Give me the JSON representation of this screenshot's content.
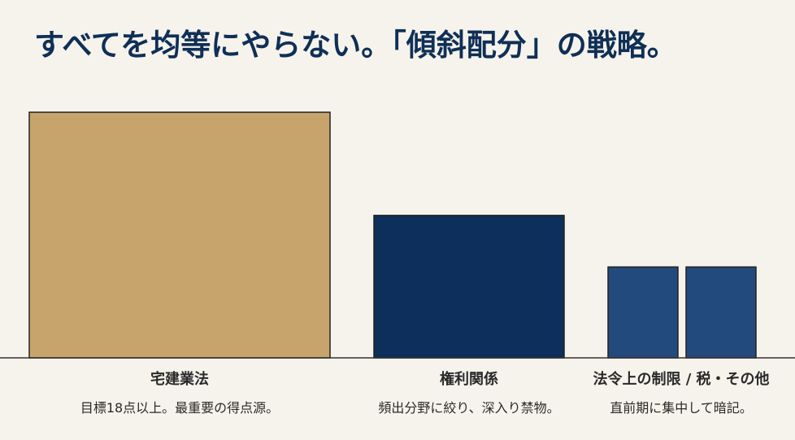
{
  "chart_data": {
    "type": "bar",
    "title": "すべてを均等にやらない。「傾斜配分」の戦略。",
    "xlabel": "",
    "ylabel": "",
    "ylim": [
      0,
      100
    ],
    "grid": false,
    "legend": "none",
    "categories": [
      {
        "label": "宅建業法",
        "description": "目標18点以上。最重要の得点源。",
        "bars": [
          {
            "value": 100,
            "color": "#c7a46b"
          }
        ]
      },
      {
        "label": "権利関係",
        "description": "頻出分野に絞り、深入り禁物。",
        "bars": [
          {
            "value": 58,
            "color": "#0c2f5b"
          }
        ]
      },
      {
        "label": "法令上の制限 / 税・その他",
        "description": "直前期に集中して暗記。",
        "bars": [
          {
            "value": 37,
            "color": "#234a7c"
          },
          {
            "value": 37,
            "color": "#234a7c"
          }
        ]
      }
    ]
  }
}
